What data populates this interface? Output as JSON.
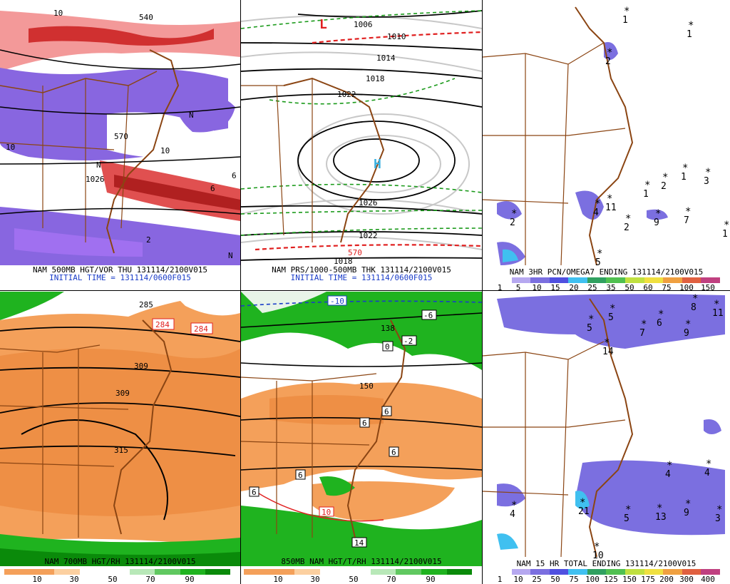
{
  "panels": {
    "p1": {
      "line1": "NAM 500MB HGT/VOR THU 131114/2100V015",
      "line2": "INITIAL TIME = 131114/0600F015",
      "labels": [
        "540",
        "570",
        "1026",
        "10",
        "10",
        "10",
        "N",
        "N",
        "N",
        "2",
        "6",
        "6"
      ]
    },
    "p2": {
      "line1": "NAM PRS/1000-500MB THK 131114/2100V015",
      "line2": "INITIAL TIME = 131114/0600F015",
      "labels": [
        "1006",
        "1010",
        "1014",
        "1018",
        "1022",
        "1026",
        "1022",
        "1018",
        "570",
        "L",
        "H"
      ]
    },
    "p3": {
      "line1": "NAM 3HR PCN/OMEGA7 ENDING 131114/2100V015",
      "ticks": [
        "1",
        "5",
        "10",
        "15",
        "20",
        "25",
        "35",
        "50",
        "60",
        "75",
        "100",
        "150"
      ],
      "marks": [
        "1",
        "1",
        "2",
        "1",
        "2",
        "1",
        "3",
        "11",
        "4",
        "2",
        "9",
        "7",
        "2",
        "5",
        "1"
      ]
    },
    "p4": {
      "line1": "NAM 700MB HGT/RH 131114/2100V015",
      "ticks": [
        "10",
        "30",
        "50",
        "70",
        "90"
      ],
      "labels": [
        "285",
        "284",
        "284",
        "309",
        "309",
        "315"
      ]
    },
    "p5": {
      "line1": "850MB NAM HGT/T/RH 131114/2100V015",
      "ticks": [
        "10",
        "30",
        "50",
        "70",
        "90"
      ],
      "labels": [
        "-10",
        "-6",
        "138",
        "0",
        "-2",
        "150",
        "6",
        "6",
        "6",
        "6",
        "6",
        "10",
        "14"
      ]
    },
    "p6": {
      "line1": "NAM 15 HR TOTAL ENDING 131114/2100V015",
      "ticks": [
        "1",
        "10",
        "25",
        "50",
        "75",
        "100",
        "125",
        "150",
        "175",
        "200",
        "300",
        "400"
      ],
      "marks": [
        "5",
        "5",
        "7",
        "6",
        "9",
        "8",
        "11",
        "14",
        "4",
        "4",
        "4",
        "21",
        "5",
        "13",
        "9",
        "3",
        "10"
      ]
    }
  },
  "colors": {
    "border": "#8b4513",
    "rh_orange": "#f4a05a",
    "rh_green": "#1fb31f",
    "vort_purple": "#7b5fd6",
    "vort_red": "#e04040",
    "precip_purple": "#7b6fe0",
    "precip_cyan": "#40c0f0"
  }
}
